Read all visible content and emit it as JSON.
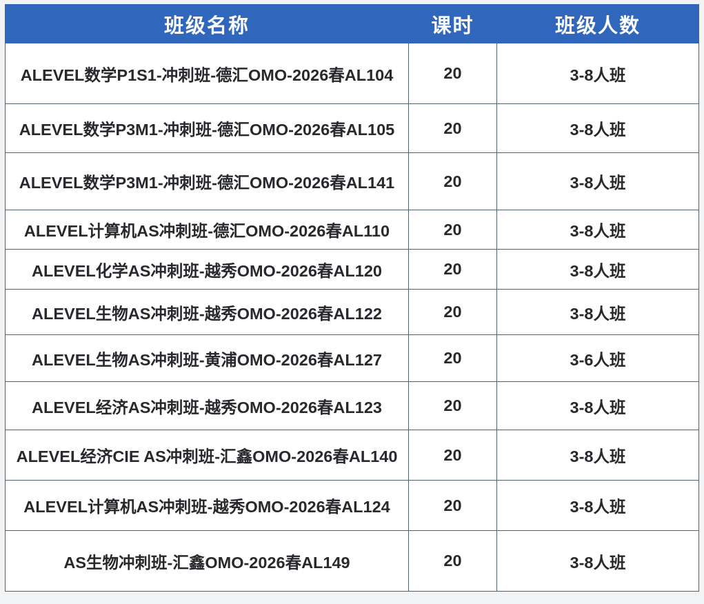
{
  "chart_data": {
    "type": "table",
    "columns": [
      "班级名称",
      "课时",
      "班级人数"
    ],
    "rows": [
      [
        "ALEVEL数学P1S1-冲刺班-德汇OMO-2026春AL104",
        "20",
        "3-8人班"
      ],
      [
        "ALEVEL数学P3M1-冲刺班-德汇OMO-2026春AL105",
        "20",
        "3-8人班"
      ],
      [
        "ALEVEL数学P3M1-冲刺班-德汇OMO-2026春AL141",
        "20",
        "3-8人班"
      ],
      [
        "ALEVEL计算机AS冲刺班-德汇OMO-2026春AL110",
        "20",
        "3-8人班"
      ],
      [
        "ALEVEL化学AS冲刺班-越秀OMO-2026春AL120",
        "20",
        "3-8人班"
      ],
      [
        "ALEVEL生物AS冲刺班-越秀OMO-2026春AL122",
        "20",
        "3-8人班"
      ],
      [
        "ALEVEL生物AS冲刺班-黄浦OMO-2026春AL127",
        "20",
        "3-6人班"
      ],
      [
        "ALEVEL经济AS冲刺班-越秀OMO-2026春AL123",
        "20",
        "3-8人班"
      ],
      [
        "ALEVEL经济CIE AS冲刺班-汇鑫OMO-2026春AL140",
        "20",
        "3-8人班"
      ],
      [
        "ALEVEL计算机AS冲刺班-越秀OMO-2026春AL124",
        "20",
        "3-8人班"
      ],
      [
        "AS生物冲刺班-汇鑫OMO-2026春AL149",
        "20",
        "3-8人班"
      ]
    ],
    "layout": {
      "header_position": "top",
      "grid": true
    },
    "colors": {
      "header_bg": "#3067bd",
      "header_text": "#ffffff",
      "cell_bg": "#ffffff",
      "border": "#51626c",
      "body_text": "#27292c",
      "page_bg": "#f2f3f5"
    }
  }
}
